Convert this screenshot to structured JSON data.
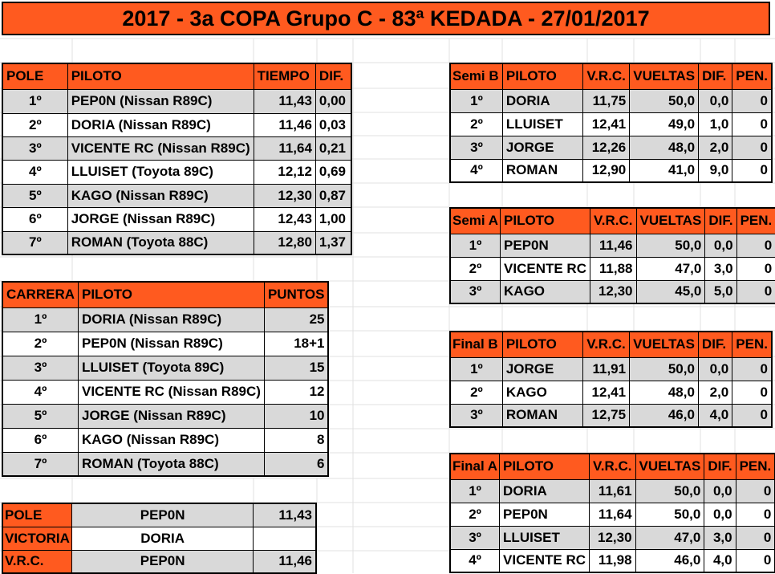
{
  "title": "2017 - 3a COPA Grupo C - 83ª KEDADA - 27/01/2017",
  "colors": {
    "header": "#ff5a1f",
    "row_shade": "#d9d9d9"
  },
  "pole": {
    "headers": [
      "POLE",
      "PILOTO",
      "TIEMPO",
      "DIF."
    ],
    "rows": [
      {
        "pos": "1º",
        "piloto": "PEP0N (Nissan R89C)",
        "tiempo": "11,43",
        "dif": "0,00"
      },
      {
        "pos": "2º",
        "piloto": "DORIA (Nissan R89C)",
        "tiempo": "11,46",
        "dif": "0,03"
      },
      {
        "pos": "3º",
        "piloto": "VICENTE RC (Nissan R89C)",
        "tiempo": "11,64",
        "dif": "0,21"
      },
      {
        "pos": "4º",
        "piloto": "LLUISET (Toyota 89C)",
        "tiempo": "12,12",
        "dif": "0,69"
      },
      {
        "pos": "5º",
        "piloto": "KAGO (Nissan R89C)",
        "tiempo": "12,30",
        "dif": "0,87"
      },
      {
        "pos": "6º",
        "piloto": "JORGE (Nissan R89C)",
        "tiempo": "12,43",
        "dif": "1,00"
      },
      {
        "pos": "7º",
        "piloto": "ROMAN (Toyota 88C)",
        "tiempo": "12,80",
        "dif": "1,37"
      }
    ]
  },
  "carrera": {
    "headers": [
      "CARRERA",
      "PILOTO",
      "PUNTOS"
    ],
    "rows": [
      {
        "pos": "1º",
        "piloto": "DORIA (Nissan R89C)",
        "puntos": "25"
      },
      {
        "pos": "2º",
        "piloto": "PEP0N (Nissan R89C)",
        "puntos": "18+1"
      },
      {
        "pos": "3º",
        "piloto": "LLUISET (Toyota 89C)",
        "puntos": "15"
      },
      {
        "pos": "4º",
        "piloto": "VICENTE RC (Nissan R89C)",
        "puntos": "12"
      },
      {
        "pos": "5º",
        "piloto": "JORGE (Nissan R89C)",
        "puntos": "10"
      },
      {
        "pos": "6º",
        "piloto": "KAGO (Nissan R89C)",
        "puntos": "8"
      },
      {
        "pos": "7º",
        "piloto": "ROMAN (Toyota 88C)",
        "puntos": "6"
      }
    ]
  },
  "summary": [
    {
      "label": "POLE",
      "piloto": "PEP0N",
      "value": "11,43"
    },
    {
      "label": "VICTORIA",
      "piloto": "DORIA",
      "value": ""
    },
    {
      "label": "V.R.C.",
      "piloto": "PEP0N",
      "value": "11,46"
    }
  ],
  "heats": [
    {
      "name": "Semi B",
      "headers": [
        "PILOTO",
        "V.R.C.",
        "VUELTAS",
        "DIF.",
        "PEN."
      ],
      "rows": [
        {
          "pos": "1º",
          "piloto": "DORIA",
          "vrc": "11,75",
          "vueltas": "50,0",
          "dif": "0,0",
          "pen": "0"
        },
        {
          "pos": "2º",
          "piloto": "LLUISET",
          "vrc": "12,41",
          "vueltas": "49,0",
          "dif": "1,0",
          "pen": "0"
        },
        {
          "pos": "3º",
          "piloto": "JORGE",
          "vrc": "12,26",
          "vueltas": "48,0",
          "dif": "2,0",
          "pen": "0"
        },
        {
          "pos": "4º",
          "piloto": "ROMAN",
          "vrc": "12,90",
          "vueltas": "41,0",
          "dif": "9,0",
          "pen": "0"
        }
      ]
    },
    {
      "name": "Semi A",
      "headers": [
        "PILOTO",
        "V.R.C.",
        "VUELTAS",
        "DIF.",
        "PEN."
      ],
      "rows": [
        {
          "pos": "1º",
          "piloto": "PEP0N",
          "vrc": "11,46",
          "vueltas": "50,0",
          "dif": "0,0",
          "pen": "0"
        },
        {
          "pos": "2º",
          "piloto": "VICENTE RC",
          "vrc": "11,88",
          "vueltas": "47,0",
          "dif": "3,0",
          "pen": "0"
        },
        {
          "pos": "3º",
          "piloto": "KAGO",
          "vrc": "12,30",
          "vueltas": "45,0",
          "dif": "5,0",
          "pen": "0"
        }
      ]
    },
    {
      "name": "Final B",
      "headers": [
        "PILOTO",
        "V.R.C.",
        "VUELTAS",
        "DIF.",
        "PEN."
      ],
      "rows": [
        {
          "pos": "1º",
          "piloto": "JORGE",
          "vrc": "11,91",
          "vueltas": "50,0",
          "dif": "0,0",
          "pen": "0"
        },
        {
          "pos": "2º",
          "piloto": "KAGO",
          "vrc": "12,41",
          "vueltas": "48,0",
          "dif": "2,0",
          "pen": "0"
        },
        {
          "pos": "3º",
          "piloto": "ROMAN",
          "vrc": "12,75",
          "vueltas": "46,0",
          "dif": "4,0",
          "pen": "0"
        }
      ]
    },
    {
      "name": "Final A",
      "headers": [
        "PILOTO",
        "V.R.C.",
        "VUELTAS",
        "DIF.",
        "PEN."
      ],
      "rows": [
        {
          "pos": "1º",
          "piloto": "DORIA",
          "vrc": "11,61",
          "vueltas": "50,0",
          "dif": "0,0",
          "pen": "0"
        },
        {
          "pos": "2º",
          "piloto": "PEP0N",
          "vrc": "11,64",
          "vueltas": "50,0",
          "dif": "0,0",
          "pen": "0"
        },
        {
          "pos": "3º",
          "piloto": "LLUISET",
          "vrc": "12,30",
          "vueltas": "47,0",
          "dif": "3,0",
          "pen": "0"
        },
        {
          "pos": "4º",
          "piloto": "VICENTE RC",
          "vrc": "11,98",
          "vueltas": "46,0",
          "dif": "4,0",
          "pen": "0"
        }
      ]
    }
  ]
}
